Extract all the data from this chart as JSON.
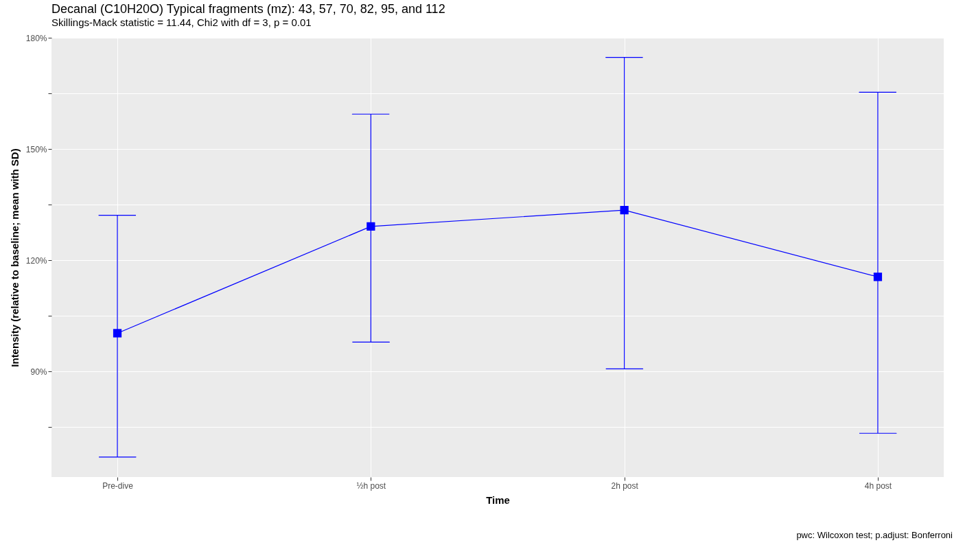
{
  "chart_data": {
    "type": "line",
    "title": "Decanal (C10H20O) Typical fragments (mz): 43, 57, 70, 82, 95, and 112",
    "subtitle": "Skillings-Mack statistic = 11.44, Chi2 with df = 3, p = 0.01",
    "xlabel": "Time",
    "ylabel": "Intensity (relative to baseline; mean with SD)",
    "categories": [
      "Pre-dive",
      "½h post",
      "2h post",
      "4h post"
    ],
    "series": [
      {
        "color": "#0000ff",
        "values": [
          100.3,
          129.1,
          133.5,
          115.5
        ],
        "errors": [
          [
            66.9,
            132.1
          ],
          [
            97.9,
            159.4
          ],
          [
            90.7,
            174.7
          ],
          [
            73.3,
            165.3
          ]
        ]
      }
    ],
    "ylim": [
      61.5,
      180
    ],
    "yticks": [
      {
        "value": 75,
        "label": null
      },
      {
        "value": 90,
        "label": "90%"
      },
      {
        "value": 105,
        "label": null
      },
      {
        "value": 120,
        "label": "120%"
      },
      {
        "value": 135,
        "label": null
      },
      {
        "value": 150,
        "label": "150%"
      },
      {
        "value": 165,
        "label": null
      },
      {
        "value": 180,
        "label": "180%"
      }
    ],
    "grid": true,
    "marker": "square",
    "line_style": "solid",
    "annotations": [
      "pwc: Wilcoxon test; p.adjust: Bonferroni"
    ]
  }
}
